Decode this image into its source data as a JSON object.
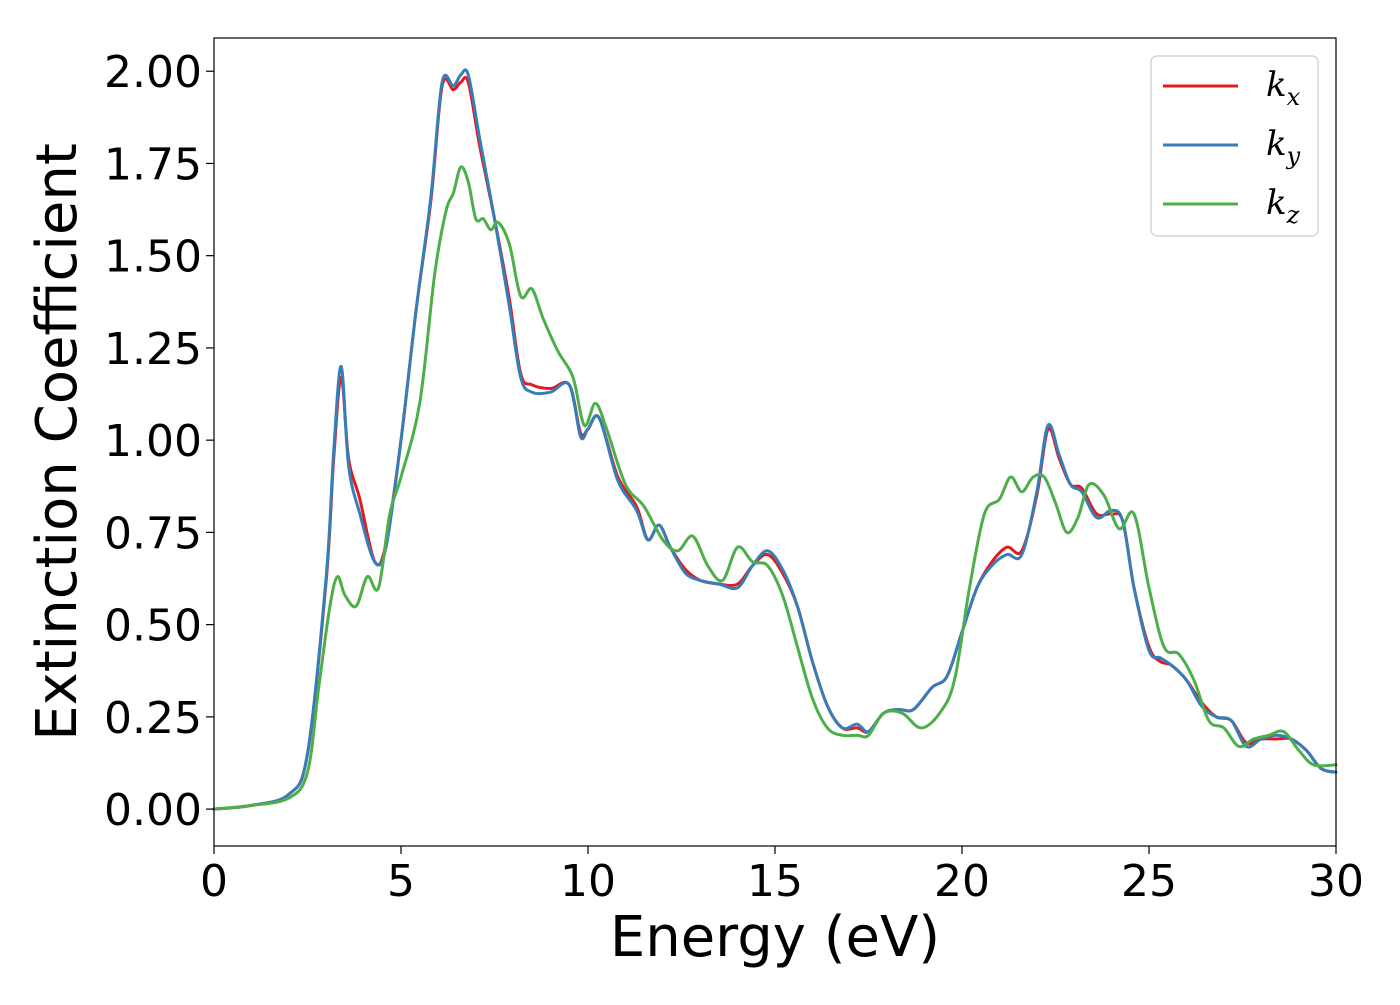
{
  "chart_data": {
    "type": "line",
    "xlabel": "Energy (eV)",
    "ylabel": "Extinction Coefficient",
    "xlim": [
      0,
      30
    ],
    "ylim": [
      -0.1,
      2.09
    ],
    "xticks": [
      0,
      5,
      10,
      15,
      20,
      25,
      30
    ],
    "xtick_labels": [
      "0",
      "5",
      "10",
      "15",
      "20",
      "25",
      "30"
    ],
    "yticks": [
      0,
      0.25,
      0.5,
      0.75,
      1.0,
      1.25,
      1.5,
      1.75,
      2.0
    ],
    "ytick_labels": [
      "0.00",
      "0.25",
      "0.50",
      "0.75",
      "1.00",
      "1.25",
      "1.50",
      "1.75",
      "2.00"
    ],
    "grid": false,
    "legend_position": "top-right",
    "series": [
      {
        "name": "k",
        "subscript": "x",
        "color": "#e41a1c",
        "x": [
          0,
          1,
          2,
          2.5,
          3,
          3.2,
          3.4,
          3.6,
          3.9,
          4.3,
          4.6,
          5,
          5.4,
          5.8,
          6.1,
          6.4,
          6.6,
          6.8,
          7.1,
          7.5,
          7.9,
          8.2,
          8.5,
          9,
          9.5,
          9.8,
          10,
          10.3,
          10.8,
          11.3,
          11.6,
          11.9,
          12.2,
          12.6,
          13,
          13.5,
          14,
          14.4,
          14.8,
          15.2,
          15.6,
          16,
          16.4,
          16.8,
          17.2,
          17.5,
          17.9,
          18.3,
          18.7,
          19.2,
          19.6,
          20,
          20.4,
          20.8,
          21.2,
          21.6,
          22,
          22.3,
          22.6,
          22.9,
          23.2,
          23.6,
          24,
          24.3,
          24.6,
          25,
          25.3,
          25.6,
          26,
          26.4,
          26.8,
          27.2,
          27.6,
          28,
          28.4,
          28.8,
          29.2,
          29.6,
          30
        ],
        "values": [
          0,
          0.01,
          0.04,
          0.15,
          0.62,
          0.95,
          1.17,
          0.95,
          0.84,
          0.67,
          0.72,
          1.0,
          1.35,
          1.65,
          1.96,
          1.95,
          1.97,
          1.97,
          1.8,
          1.6,
          1.38,
          1.18,
          1.15,
          1.14,
          1.15,
          1.02,
          1.03,
          1.06,
          0.9,
          0.82,
          0.73,
          0.77,
          0.71,
          0.65,
          0.62,
          0.61,
          0.61,
          0.66,
          0.69,
          0.64,
          0.55,
          0.4,
          0.28,
          0.22,
          0.22,
          0.21,
          0.26,
          0.27,
          0.27,
          0.33,
          0.36,
          0.48,
          0.6,
          0.67,
          0.71,
          0.7,
          0.85,
          1.03,
          0.95,
          0.88,
          0.87,
          0.8,
          0.8,
          0.78,
          0.6,
          0.44,
          0.4,
          0.39,
          0.35,
          0.29,
          0.25,
          0.24,
          0.18,
          0.19,
          0.19,
          0.19,
          0.16,
          0.11,
          0.1
        ]
      },
      {
        "name": "k",
        "subscript": "y",
        "color": "#377eb8",
        "x": [
          0,
          1,
          2,
          2.5,
          3,
          3.2,
          3.4,
          3.6,
          3.9,
          4.3,
          4.6,
          5,
          5.4,
          5.8,
          6.1,
          6.4,
          6.6,
          6.8,
          7.1,
          7.5,
          7.9,
          8.2,
          8.5,
          9,
          9.5,
          9.8,
          10,
          10.3,
          10.8,
          11.3,
          11.6,
          11.9,
          12.2,
          12.6,
          13,
          13.5,
          14,
          14.4,
          14.8,
          15.2,
          15.6,
          16,
          16.4,
          16.8,
          17.2,
          17.5,
          17.9,
          18.3,
          18.7,
          19.2,
          19.6,
          20,
          20.4,
          20.8,
          21.2,
          21.6,
          22,
          22.3,
          22.6,
          22.9,
          23.2,
          23.6,
          24,
          24.3,
          24.6,
          25,
          25.3,
          25.6,
          26,
          26.4,
          26.8,
          27.2,
          27.6,
          28,
          28.4,
          28.8,
          29.2,
          29.6,
          30
        ],
        "values": [
          0,
          0.01,
          0.04,
          0.15,
          0.63,
          0.97,
          1.2,
          0.93,
          0.8,
          0.67,
          0.71,
          1.0,
          1.35,
          1.66,
          1.97,
          1.96,
          1.99,
          1.99,
          1.82,
          1.6,
          1.36,
          1.17,
          1.13,
          1.13,
          1.15,
          1.01,
          1.03,
          1.06,
          0.89,
          0.81,
          0.73,
          0.77,
          0.71,
          0.64,
          0.62,
          0.61,
          0.6,
          0.66,
          0.7,
          0.65,
          0.55,
          0.4,
          0.28,
          0.22,
          0.23,
          0.21,
          0.26,
          0.27,
          0.27,
          0.33,
          0.36,
          0.48,
          0.6,
          0.66,
          0.69,
          0.69,
          0.86,
          1.04,
          0.96,
          0.88,
          0.86,
          0.79,
          0.81,
          0.78,
          0.6,
          0.43,
          0.41,
          0.39,
          0.35,
          0.28,
          0.25,
          0.24,
          0.17,
          0.19,
          0.2,
          0.19,
          0.16,
          0.11,
          0.1
        ]
      },
      {
        "name": "k",
        "subscript": "z",
        "color": "#4daf4a",
        "x": [
          0,
          1,
          2,
          2.5,
          2.8,
          3.1,
          3.3,
          3.5,
          3.8,
          4.1,
          4.4,
          4.7,
          5,
          5.5,
          5.9,
          6.2,
          6.4,
          6.6,
          6.8,
          7.0,
          7.2,
          7.4,
          7.6,
          7.9,
          8.2,
          8.5,
          8.8,
          9.2,
          9.6,
          9.9,
          10.2,
          10.5,
          11,
          11.5,
          12,
          12.4,
          12.8,
          13.2,
          13.6,
          14.0,
          14.4,
          14.8,
          15.2,
          15.6,
          16,
          16.4,
          16.8,
          17.2,
          17.5,
          17.9,
          18.4,
          18.9,
          19.4,
          19.8,
          20.2,
          20.6,
          21,
          21.3,
          21.6,
          21.9,
          22.2,
          22.5,
          22.8,
          23.1,
          23.4,
          23.8,
          24.2,
          24.6,
          25,
          25.4,
          25.8,
          26.2,
          26.6,
          27,
          27.4,
          27.8,
          28.2,
          28.6,
          29,
          29.4,
          30
        ],
        "values": [
          0,
          0.01,
          0.03,
          0.1,
          0.33,
          0.55,
          0.63,
          0.58,
          0.55,
          0.63,
          0.6,
          0.8,
          0.9,
          1.1,
          1.45,
          1.62,
          1.67,
          1.74,
          1.7,
          1.6,
          1.6,
          1.57,
          1.59,
          1.53,
          1.39,
          1.41,
          1.33,
          1.24,
          1.17,
          1.04,
          1.1,
          1.03,
          0.88,
          0.82,
          0.73,
          0.7,
          0.74,
          0.66,
          0.62,
          0.71,
          0.67,
          0.66,
          0.58,
          0.44,
          0.3,
          0.22,
          0.2,
          0.2,
          0.2,
          0.26,
          0.26,
          0.22,
          0.26,
          0.35,
          0.6,
          0.8,
          0.84,
          0.9,
          0.86,
          0.9,
          0.9,
          0.83,
          0.75,
          0.79,
          0.88,
          0.85,
          0.76,
          0.8,
          0.6,
          0.44,
          0.42,
          0.35,
          0.24,
          0.22,
          0.17,
          0.19,
          0.2,
          0.21,
          0.16,
          0.12,
          0.12
        ]
      }
    ]
  }
}
